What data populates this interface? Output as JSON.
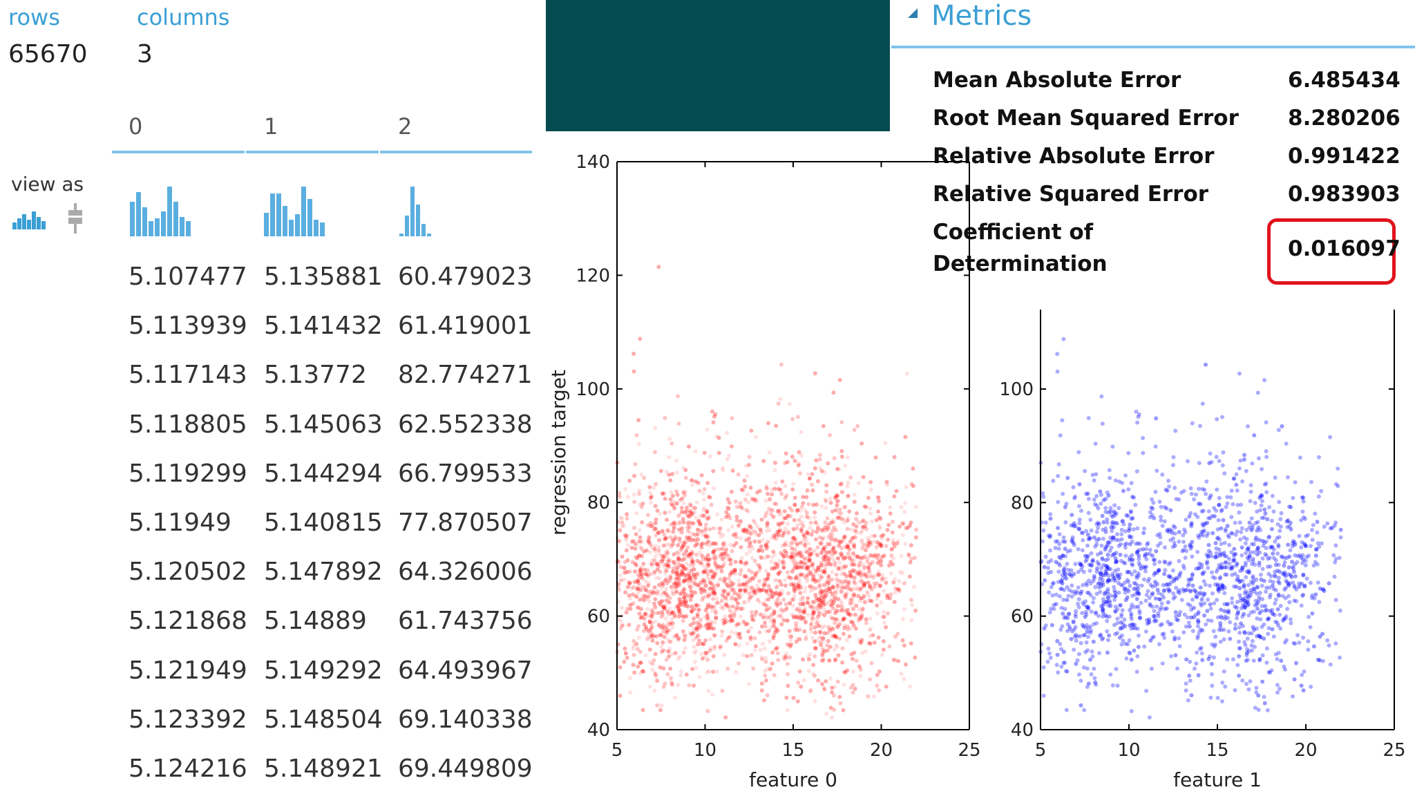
{
  "dataset": {
    "rows_label": "rows",
    "rows_value": "65670",
    "columns_label": "columns",
    "columns_value": "3",
    "column_headers": [
      "0",
      "1",
      "2"
    ],
    "view_as_label": "view as",
    "table": [
      [
        "5.107477",
        "5.135881",
        "60.479023"
      ],
      [
        "5.113939",
        "5.141432",
        "61.419001"
      ],
      [
        "5.117143",
        "5.13772",
        "82.774271"
      ],
      [
        "5.118805",
        "5.145063",
        "62.552338"
      ],
      [
        "5.119299",
        "5.144294",
        "66.799533"
      ],
      [
        "5.11949",
        "5.140815",
        "77.870507"
      ],
      [
        "5.120502",
        "5.147892",
        "64.326006"
      ],
      [
        "5.121868",
        "5.14889",
        "61.743756"
      ],
      [
        "5.121949",
        "5.149292",
        "64.493967"
      ],
      [
        "5.123392",
        "5.148504",
        "69.140338"
      ],
      [
        "5.124216",
        "5.148921",
        "69.449809"
      ]
    ]
  },
  "metrics": {
    "title": "Metrics",
    "items": [
      {
        "label": "Mean Absolute Error",
        "value": "6.485434"
      },
      {
        "label": "Root Mean Squared Error",
        "value": "8.280206"
      },
      {
        "label": "Relative Absolute Error",
        "value": "0.991422"
      },
      {
        "label": "Relative Squared Error",
        "value": "0.983903"
      },
      {
        "label_line1": "Coefficient of",
        "label_line2": "Determination",
        "value": "0.016097"
      }
    ]
  },
  "chart_data": [
    {
      "type": "scatter",
      "title": "",
      "xlabel": "feature 0",
      "ylabel": "regression target",
      "xlim": [
        5,
        25
      ],
      "ylim": [
        40,
        140
      ],
      "xticks": [
        "5",
        "10",
        "15",
        "20",
        "25"
      ],
      "yticks": [
        "40",
        "60",
        "80",
        "100",
        "120",
        "140"
      ],
      "color": "#ff0000",
      "clusters": [
        {
          "x_center": 8.5,
          "y_center": 67,
          "x_spread": 2.2,
          "y_spread": 8
        },
        {
          "x_center": 16.5,
          "y_center": 67,
          "x_spread": 2.2,
          "y_spread": 8
        }
      ],
      "x_range_of_points": [
        5,
        22
      ]
    },
    {
      "type": "scatter",
      "title": "",
      "xlabel": "feature 1",
      "ylabel": "",
      "xlim": [
        5,
        25
      ],
      "ylim": [
        40,
        114
      ],
      "xticks": [
        "5",
        "10",
        "15",
        "20",
        "25"
      ],
      "yticks": [
        "40",
        "60",
        "80",
        "100"
      ],
      "color": "#0000ff",
      "clusters": [
        {
          "x_center": 8.5,
          "y_center": 67,
          "x_spread": 2.2,
          "y_spread": 8
        },
        {
          "x_center": 16.5,
          "y_center": 67,
          "x_spread": 2.2,
          "y_spread": 8
        }
      ],
      "x_range_of_points": [
        5,
        22
      ]
    }
  ],
  "colors": {
    "accent": "#3a9fd4",
    "teal_block": "#044b50",
    "highlight": "#e0131b"
  }
}
